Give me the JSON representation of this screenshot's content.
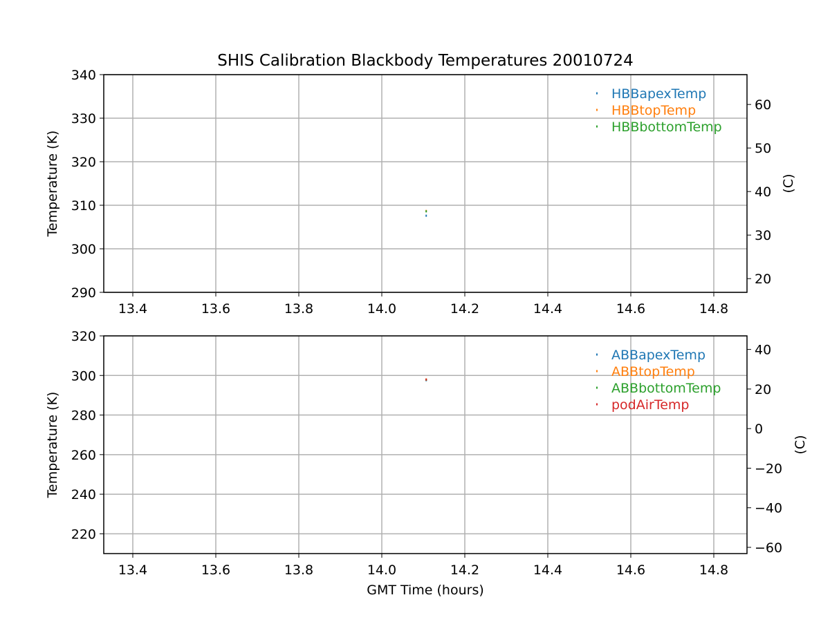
{
  "chart_data": [
    {
      "type": "scatter",
      "title": "SHIS Calibration Blackbody Temperatures 20010724",
      "xlabel": "",
      "ylabel": "Temperature (K)",
      "ylabel_right": "(C)",
      "xlim": [
        13.33,
        14.88
      ],
      "ylim": [
        290,
        340
      ],
      "ylim_right": [
        16.85,
        66.85
      ],
      "x_ticks": [
        "13.4",
        "13.6",
        "13.8",
        "14.0",
        "14.2",
        "14.4",
        "14.6",
        "14.8"
      ],
      "y_ticks": [
        "290",
        "300",
        "310",
        "320",
        "330",
        "340"
      ],
      "y_ticks_right": [
        "20",
        "30",
        "40",
        "50",
        "60"
      ],
      "grid": true,
      "legend_placement": "top-right",
      "series": [
        {
          "name": "HBBapexTemp",
          "color": "#1f77b4",
          "points": [
            [
              14.107,
              307.6
            ]
          ]
        },
        {
          "name": "HBBtopTemp",
          "color": "#ff7f0e",
          "points": [
            [
              14.107,
              308.7
            ]
          ]
        },
        {
          "name": "HBBbottomTemp",
          "color": "#2ca02c",
          "points": [
            [
              14.107,
              308.6
            ]
          ]
        }
      ]
    },
    {
      "type": "scatter",
      "title": "",
      "xlabel": "GMT Time (hours)",
      "ylabel": "Temperature (K)",
      "ylabel_right": "(C)",
      "xlim": [
        13.33,
        14.88
      ],
      "ylim": [
        210,
        320
      ],
      "ylim_right": [
        -63.15,
        46.85
      ],
      "x_ticks": [
        "13.4",
        "13.6",
        "13.8",
        "14.0",
        "14.2",
        "14.4",
        "14.6",
        "14.8"
      ],
      "y_ticks": [
        "220",
        "240",
        "260",
        "280",
        "300",
        "320"
      ],
      "y_ticks_right": [
        "−60",
        "−40",
        "−20",
        "0",
        "20",
        "40"
      ],
      "grid": true,
      "legend_placement": "top-right",
      "series": [
        {
          "name": "ABBapexTemp",
          "color": "#1f77b4",
          "points": [
            [
              14.107,
              297.6
            ]
          ]
        },
        {
          "name": "ABBtopTemp",
          "color": "#ff7f0e",
          "points": [
            [
              14.107,
              298.0
            ]
          ]
        },
        {
          "name": "ABBbottomTemp",
          "color": "#2ca02c",
          "points": [
            [
              14.107,
              297.8
            ]
          ]
        },
        {
          "name": "podAirTemp",
          "color": "#d62728",
          "points": [
            [
              14.107,
              297.9
            ]
          ]
        }
      ]
    }
  ]
}
